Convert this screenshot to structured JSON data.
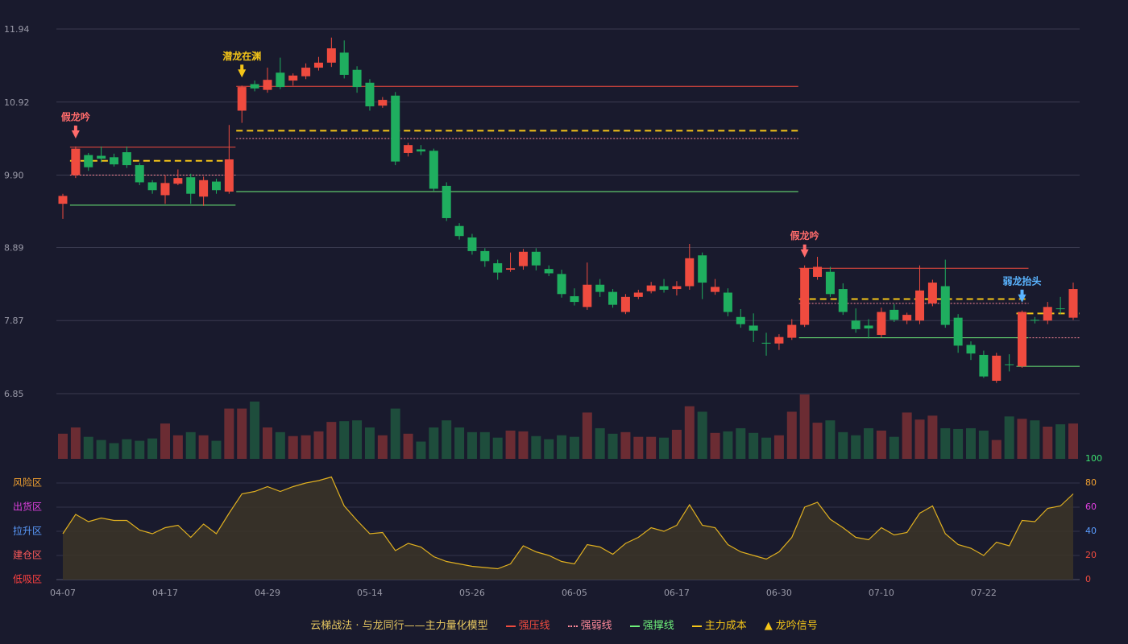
{
  "chart_data": {
    "type": "candlestick",
    "categories": [
      "04-07",
      null,
      null,
      null,
      null,
      null,
      null,
      null,
      "04-17",
      null,
      null,
      null,
      null,
      null,
      null,
      null,
      "04-29",
      null,
      null,
      null,
      null,
      null,
      null,
      null,
      "05-14",
      null,
      null,
      null,
      null,
      null,
      null,
      null,
      "05-26",
      null,
      null,
      null,
      null,
      null,
      null,
      null,
      "06-05",
      null,
      null,
      null,
      null,
      null,
      null,
      null,
      "06-17",
      null,
      null,
      null,
      null,
      null,
      null,
      null,
      "06-30",
      null,
      null,
      null,
      null,
      null,
      null,
      null,
      "07-10",
      null,
      null,
      null,
      null,
      null,
      null,
      null,
      "07-22",
      null,
      null,
      null,
      null,
      null,
      null,
      null
    ],
    "open": [
      9.5,
      9.9,
      10.18,
      10.17,
      10.15,
      10.22,
      10.04,
      9.8,
      9.62,
      9.78,
      9.87,
      9.6,
      9.81,
      9.67,
      10.8,
      11.17,
      11.09,
      11.33,
      11.22,
      11.28,
      11.4,
      11.47,
      11.61,
      11.37,
      11.19,
      10.87,
      11.01,
      10.21,
      10.26,
      10.24,
      9.75,
      9.19,
      9.03,
      8.84,
      8.67,
      8.58,
      8.63,
      8.83,
      8.59,
      8.52,
      8.21,
      8.06,
      8.37,
      8.27,
      7.99,
      8.2,
      8.28,
      8.35,
      8.31,
      8.35,
      8.78,
      8.27,
      8.26,
      7.92,
      7.8,
      7.56,
      7.55,
      7.63,
      7.81,
      8.48,
      8.55,
      8.31,
      7.87,
      7.8,
      7.67,
      8.02,
      7.87,
      7.87,
      8.11,
      8.35,
      7.91,
      7.53,
      7.39,
      7.03,
      7.26,
      7.23,
      7.88,
      7.87,
      8.04,
      7.91
    ],
    "close": [
      9.61,
      10.27,
      10.01,
      10.13,
      10.05,
      10.04,
      9.8,
      9.69,
      9.79,
      9.86,
      9.64,
      9.83,
      9.69,
      10.12,
      11.13,
      11.11,
      11.23,
      11.13,
      11.29,
      11.4,
      11.47,
      11.67,
      11.3,
      11.13,
      10.86,
      10.95,
      10.09,
      10.32,
      10.23,
      9.71,
      9.3,
      9.05,
      8.84,
      8.7,
      8.54,
      8.6,
      8.83,
      8.64,
      8.53,
      8.24,
      8.13,
      8.37,
      8.27,
      8.09,
      8.2,
      8.26,
      8.36,
      8.3,
      8.35,
      8.74,
      8.4,
      8.34,
      7.99,
      7.82,
      7.73,
      7.55,
      7.64,
      7.81,
      8.6,
      8.62,
      8.24,
      7.99,
      7.75,
      7.76,
      7.99,
      7.88,
      7.95,
      8.29,
      8.4,
      7.81,
      7.52,
      7.41,
      7.09,
      7.38,
      7.25,
      7.99,
      7.87,
      8.06,
      8.03,
      8.31
    ],
    "high": [
      9.64,
      10.3,
      10.21,
      10.3,
      10.2,
      10.3,
      10.07,
      9.83,
      9.9,
      9.98,
      9.92,
      9.88,
      9.85,
      10.6,
      11.15,
      11.22,
      11.4,
      11.54,
      11.32,
      11.46,
      11.55,
      11.82,
      11.78,
      11.42,
      11.24,
      10.99,
      11.06,
      10.35,
      10.32,
      10.27,
      9.8,
      9.23,
      9.08,
      8.88,
      8.72,
      8.82,
      8.87,
      8.88,
      8.64,
      8.58,
      8.32,
      8.68,
      8.45,
      8.31,
      8.24,
      8.3,
      8.41,
      8.45,
      8.42,
      8.94,
      8.82,
      8.45,
      8.32,
      8.03,
      7.97,
      7.7,
      7.68,
      7.89,
      8.64,
      8.76,
      8.62,
      8.39,
      8.04,
      7.89,
      8.05,
      8.1,
      7.98,
      8.64,
      8.44,
      8.72,
      7.96,
      7.58,
      7.45,
      7.42,
      7.4,
      8.01,
      7.92,
      8.13,
      8.2,
      8.4
    ],
    "low": [
      9.29,
      9.86,
      9.96,
      10.08,
      10.02,
      10.0,
      9.76,
      9.64,
      9.5,
      9.76,
      9.5,
      9.47,
      9.64,
      9.64,
      10.63,
      11.07,
      11.05,
      11.1,
      11.15,
      11.24,
      11.36,
      11.41,
      11.25,
      11.05,
      10.8,
      10.84,
      10.04,
      10.16,
      10.18,
      9.68,
      9.26,
      9.0,
      8.79,
      8.62,
      8.44,
      8.55,
      8.58,
      8.57,
      8.49,
      8.19,
      8.08,
      8.02,
      8.2,
      8.05,
      7.96,
      8.17,
      8.25,
      8.26,
      8.22,
      8.3,
      8.17,
      8.23,
      7.93,
      7.77,
      7.57,
      7.38,
      7.46,
      7.6,
      7.78,
      8.44,
      8.2,
      7.95,
      7.7,
      7.62,
      7.63,
      7.85,
      7.82,
      7.82,
      8.07,
      7.77,
      7.42,
      7.32,
      7.07,
      7.0,
      7.16,
      7.21,
      7.83,
      7.82,
      7.96,
      7.88
    ],
    "up_color": "#ef4b3f",
    "down_color": "#1fae5f",
    "ylim": [
      6.85,
      11.94
    ],
    "yticks": [
      11.94,
      10.92,
      {
        "value": 9.9,
        "label": "9.90"
      },
      8.89,
      7.87,
      6.85
    ],
    "grid": true,
    "lines": [
      {
        "name": "强压线",
        "color": "#ef4b3f",
        "dash": "solid",
        "segments": [
          {
            "start": 1,
            "end": 13,
            "value": 10.29
          },
          {
            "start": 14,
            "end": 57,
            "value": 11.14
          },
          {
            "start": 58,
            "end": 75,
            "value": 8.6
          }
        ]
      },
      {
        "name": "强弱线",
        "color": "#ff8a9a",
        "dash": "dotted",
        "segments": [
          {
            "start": 1,
            "end": 13,
            "value": 9.9
          },
          {
            "start": 14,
            "end": 57,
            "value": 10.41
          },
          {
            "start": 58,
            "end": 75,
            "value": 8.11
          },
          {
            "start": 75,
            "end": 79,
            "value": 7.63
          }
        ]
      },
      {
        "name": "强撑线",
        "color": "#6ef07a",
        "dash": "solid",
        "segments": [
          {
            "start": 1,
            "end": 13,
            "value": 9.48
          },
          {
            "start": 14,
            "end": 57,
            "value": 9.67
          },
          {
            "start": 58,
            "end": 75,
            "value": 7.63
          },
          {
            "start": 75,
            "end": 79,
            "value": 7.23
          }
        ]
      },
      {
        "name": "主力成本",
        "color": "#f5c518",
        "dash": "dashed",
        "segments": [
          {
            "start": 1,
            "end": 12,
            "value": 10.1
          },
          {
            "start": 14,
            "end": 57,
            "value": 10.52
          },
          {
            "start": 58,
            "end": 75,
            "value": 8.17
          },
          {
            "start": 75,
            "end": 79,
            "value": 7.97
          }
        ]
      }
    ],
    "signals": [
      {
        "index": 1,
        "label": "假龙吟",
        "color": "#ff6b6b"
      },
      {
        "index": 14,
        "label": "潜龙在渊",
        "color": "#f5c518"
      },
      {
        "index": 58,
        "label": "假龙吟",
        "color": "#ff6b6b"
      },
      {
        "index": 75,
        "label": "弱龙抬头",
        "color": "#5ab4ff"
      }
    ],
    "signal_legend": {
      "name": "龙吟信号",
      "color": "#f5c518"
    },
    "model_title": "云梯战法 · 与龙同行——主力量化模型",
    "volume": {
      "values": [
        32,
        40,
        28,
        24,
        20,
        25,
        23,
        26,
        45,
        30,
        34,
        30,
        23,
        64,
        64,
        73,
        40,
        34,
        29,
        30,
        35,
        47,
        48,
        49,
        40,
        30,
        64,
        32,
        22,
        40,
        49,
        40,
        34,
        34,
        27,
        36,
        35,
        29,
        25,
        30,
        28,
        59,
        39,
        32,
        34,
        28,
        28,
        27,
        37,
        67,
        60,
        33,
        35,
        39,
        33,
        27,
        30,
        60,
        82,
        46,
        49,
        34,
        30,
        39,
        36,
        28,
        59,
        50,
        55,
        39,
        38,
        39,
        36,
        24,
        54,
        51,
        49,
        41,
        44,
        45
      ],
      "up_color": "#6b2c33",
      "down_color": "#1e4d3c"
    },
    "indicator": {
      "values": [
        38,
        54,
        48,
        51,
        49,
        49,
        41,
        38,
        43,
        45,
        35,
        46,
        38,
        55,
        71,
        73,
        77,
        73,
        77,
        80,
        82,
        85,
        61,
        49,
        38,
        39,
        24,
        30,
        27,
        19,
        15,
        13,
        11,
        10,
        9,
        13,
        28,
        23,
        20,
        15,
        13,
        29,
        27,
        21,
        30,
        35,
        43,
        40,
        45,
        62,
        45,
        43,
        29,
        23,
        20,
        17,
        23,
        35,
        60,
        64,
        50,
        43,
        35,
        33,
        43,
        37,
        39,
        55,
        61,
        38,
        29,
        26,
        20,
        31,
        28,
        49,
        48,
        59,
        61,
        71
      ],
      "color": "#e0b020",
      "ylim": [
        0,
        100
      ],
      "yticks": [
        0,
        20,
        40,
        60,
        80,
        100
      ],
      "ytick_colors": [
        "#ef4b3f",
        "#ef4b3f",
        "#5a9cff",
        "#e040e0",
        "#f0a030",
        "#3ce070"
      ],
      "zones": [
        {
          "label": "风险区",
          "value": 80,
          "color": "#f0a030"
        },
        {
          "label": "出货区",
          "value": 60,
          "color": "#e040e0"
        },
        {
          "label": "拉升区",
          "value": 40,
          "color": "#5a9cff"
        },
        {
          "label": "建仓区",
          "value": 20,
          "color": "#ff5a5a"
        },
        {
          "label": "低吸区",
          "value": 0,
          "color": "#ff4040"
        }
      ]
    }
  }
}
